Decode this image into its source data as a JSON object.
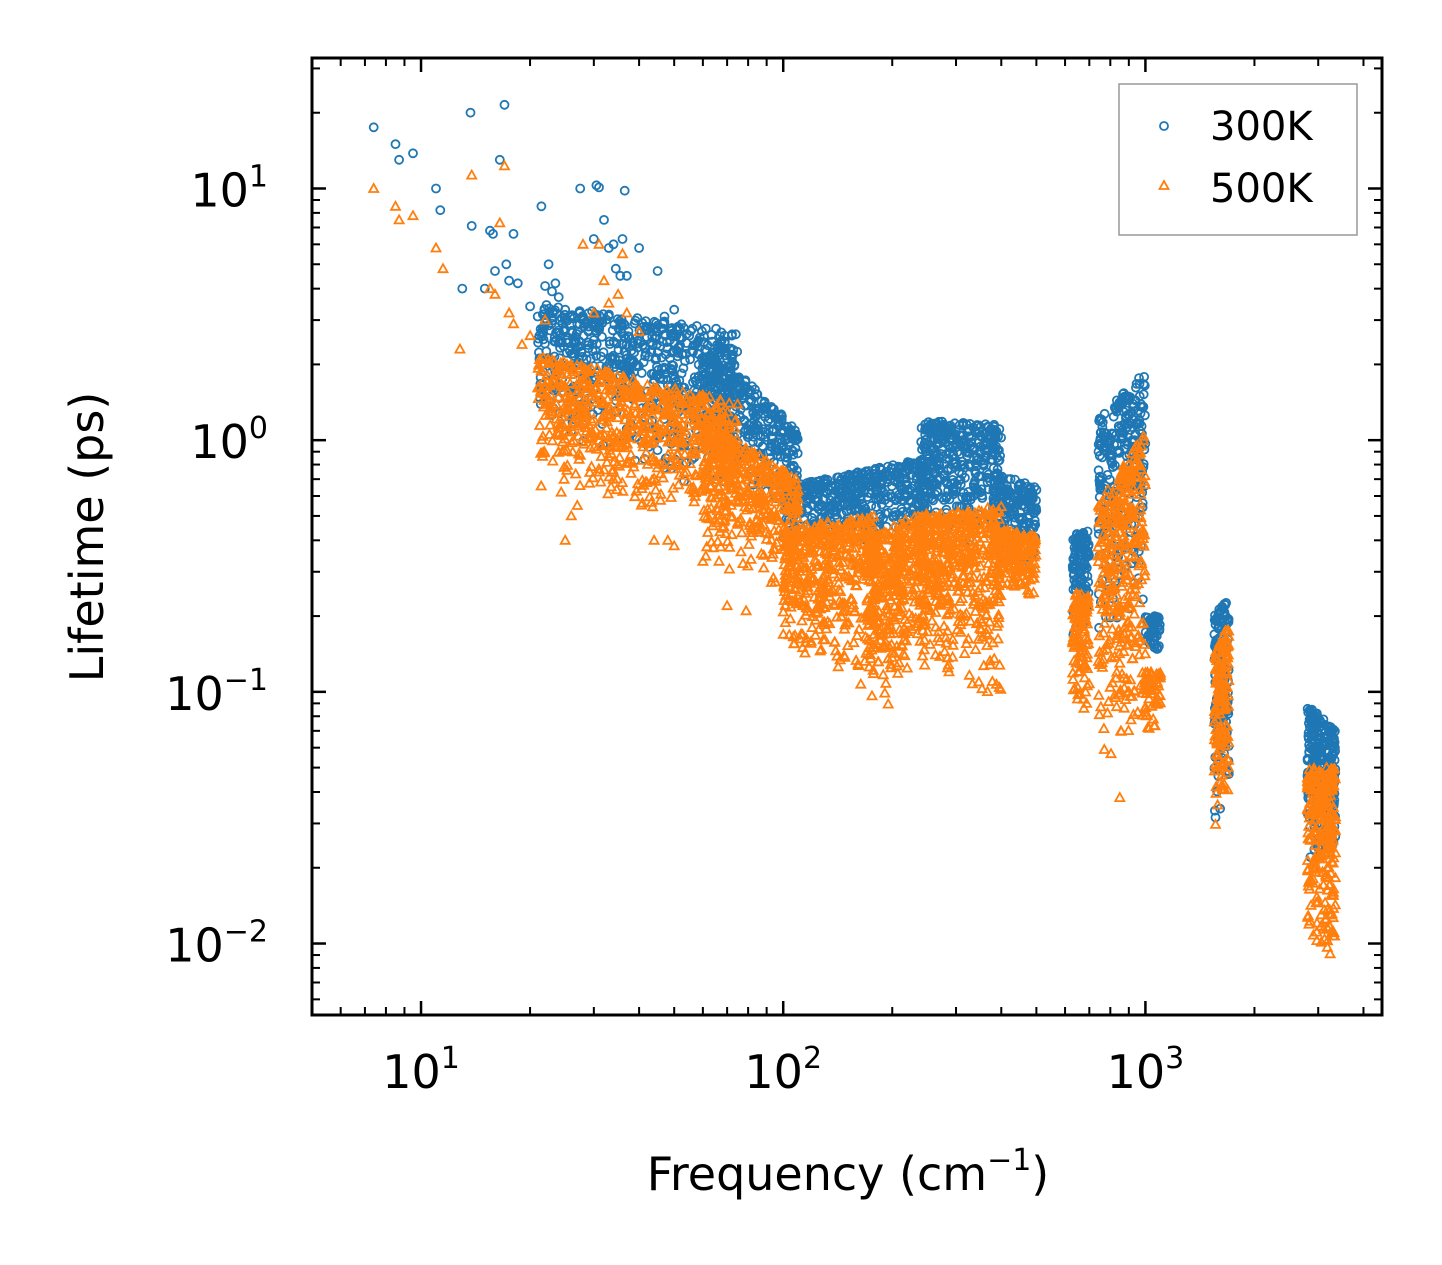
{
  "chart_data": {
    "type": "scatter",
    "xscale": "log",
    "yscale": "log",
    "xlim": [
      5,
      4500
    ],
    "ylim": [
      0.0052,
      33
    ],
    "xlabel": {
      "main": "Frequency (cm",
      "sup": "−1",
      "tail": ")"
    },
    "ylabel": "Lifetime (ps)",
    "x_ticks": [
      {
        "value": 10,
        "base": "10",
        "exp": "1"
      },
      {
        "value": 100,
        "base": "10",
        "exp": "2"
      },
      {
        "value": 1000,
        "base": "10",
        "exp": "3"
      }
    ],
    "y_ticks": [
      {
        "value": 10,
        "base": "10",
        "exp": "1"
      },
      {
        "value": 1,
        "base": "10",
        "exp": "0"
      },
      {
        "value": 0.1,
        "base": "10",
        "exp": "−1"
      },
      {
        "value": 0.01,
        "base": "10",
        "exp": "−2"
      }
    ],
    "legend": {
      "position": "top-right"
    },
    "series": [
      {
        "name": "300K",
        "color": "#1f77b4",
        "marker": "circle",
        "points": [
          [
            7.4,
            17.5
          ],
          [
            8.5,
            15
          ],
          [
            8.7,
            13
          ],
          [
            9.5,
            13.8
          ],
          [
            11,
            10
          ],
          [
            11.3,
            8.2
          ],
          [
            13,
            4
          ],
          [
            13.7,
            20
          ],
          [
            13.8,
            7.1
          ],
          [
            15,
            4
          ],
          [
            15.5,
            6.8
          ],
          [
            15.8,
            6.6
          ],
          [
            16,
            4.7
          ],
          [
            16.5,
            13
          ],
          [
            17,
            21.5
          ],
          [
            17.2,
            5
          ],
          [
            17.5,
            4.3
          ],
          [
            18,
            6.6
          ],
          [
            18.5,
            4.2
          ],
          [
            20,
            3.4
          ],
          [
            21,
            3.1
          ],
          [
            21.5,
            8.5
          ],
          [
            22,
            4.1
          ],
          [
            22.5,
            5
          ],
          [
            23,
            3.9
          ],
          [
            23.5,
            4.2
          ],
          [
            24,
            3.7
          ],
          [
            25,
            3.3
          ],
          [
            26,
            2.2
          ],
          [
            26.5,
            2.5
          ],
          [
            27,
            2.9
          ],
          [
            27.5,
            10
          ],
          [
            28,
            3.1
          ],
          [
            29,
            2.7
          ],
          [
            30,
            6.3
          ],
          [
            30.5,
            10.3
          ],
          [
            31,
            10.1
          ],
          [
            32,
            7.5
          ],
          [
            33,
            5.8
          ],
          [
            34,
            6
          ],
          [
            34.5,
            4.8
          ],
          [
            35.5,
            4.5
          ],
          [
            36,
            6.3
          ],
          [
            36.5,
            9.8
          ],
          [
            37,
            4.5
          ],
          [
            40,
            5.8
          ],
          [
            45,
            4.7
          ],
          [
            47,
            3.1
          ],
          [
            50,
            3.3
          ]
        ],
        "bands": [
          {
            "x": [
              21,
              75
            ],
            "ylo": [
              1.1,
              0.55
            ],
            "yhi": [
              3.5,
              2.7
            ],
            "n": 700
          },
          {
            "x": [
              60,
              110
            ],
            "ylo": [
              0.9,
              0.45
            ],
            "yhi": [
              2.5,
              1.1
            ],
            "n": 350
          },
          {
            "x": [
              100,
              250
            ],
            "ylo": [
              0.35,
              0.4
            ],
            "yhi": [
              0.65,
              0.85
            ],
            "n": 500
          },
          {
            "x": [
              240,
              400
            ],
            "ylo": [
              0.4,
              0.35
            ],
            "yhi": [
              1.2,
              1.15
            ],
            "n": 400
          },
          {
            "x": [
              380,
              500
            ],
            "ylo": [
              0.3,
              0.3
            ],
            "yhi": [
              0.75,
              0.65
            ],
            "n": 200
          },
          {
            "x": [
              630,
              700
            ],
            "ylo": [
              0.16,
              0.16
            ],
            "yhi": [
              0.42,
              0.45
            ],
            "n": 120
          },
          {
            "x": [
              740,
              1000
            ],
            "ylo": [
              0.16,
              0.2
            ],
            "yhi": [
              1.2,
              1.9
            ],
            "n": 300
          },
          {
            "x": [
              1000,
              1100
            ],
            "ylo": [
              0.14,
              0.14
            ],
            "yhi": [
              0.2,
              0.2
            ],
            "n": 60
          },
          {
            "x": [
              1550,
              1700
            ],
            "ylo": [
              0.03,
              0.03
            ],
            "yhi": [
              0.2,
              0.24
            ],
            "n": 140
          },
          {
            "x": [
              2800,
              3350
            ],
            "ylo": [
              0.02,
              0.02
            ],
            "yhi": [
              0.09,
              0.07
            ],
            "n": 260
          }
        ]
      },
      {
        "name": "500K",
        "color": "#ff7f0e",
        "marker": "triangle",
        "points": [
          [
            7.4,
            10
          ],
          [
            8.5,
            8.5
          ],
          [
            8.7,
            7.5
          ],
          [
            9.5,
            7.8
          ],
          [
            11,
            5.8
          ],
          [
            11.5,
            4.8
          ],
          [
            12.8,
            2.3
          ],
          [
            13.8,
            11.3
          ],
          [
            15.5,
            4
          ],
          [
            16,
            3.8
          ],
          [
            16.5,
            7.3
          ],
          [
            17,
            12.3
          ],
          [
            17.5,
            3.2
          ],
          [
            18,
            2.9
          ],
          [
            19,
            2.4
          ],
          [
            20,
            2.6
          ],
          [
            22,
            3
          ],
          [
            24,
            1.7
          ],
          [
            25,
            0.4
          ],
          [
            26,
            0.5
          ],
          [
            27,
            0.55
          ],
          [
            28,
            6
          ],
          [
            30,
            3.2
          ],
          [
            31,
            6
          ],
          [
            32,
            4.3
          ],
          [
            33,
            3.5
          ],
          [
            35,
            3.8
          ],
          [
            36,
            5.5
          ],
          [
            37,
            3.2
          ],
          [
            40,
            2.7
          ],
          [
            44,
            0.4
          ],
          [
            48,
            0.4
          ],
          [
            50,
            0.38
          ],
          [
            60,
            0.33
          ],
          [
            70,
            0.22
          ],
          [
            79,
            0.21
          ],
          [
            850,
            0.038
          ]
        ],
        "bands": [
          {
            "x": [
              21,
              75
            ],
            "ylo": [
              0.55,
              0.45
            ],
            "yhi": [
              2.2,
              1.4
            ],
            "n": 700
          },
          {
            "x": [
              60,
              110
            ],
            "ylo": [
              0.3,
              0.24
            ],
            "yhi": [
              1.2,
              0.7
            ],
            "n": 400
          },
          {
            "x": [
              100,
              180
            ],
            "ylo": [
              0.14,
              0.1
            ],
            "yhi": [
              0.45,
              0.5
            ],
            "n": 450
          },
          {
            "x": [
              170,
              250
            ],
            "ylo": [
              0.07,
              0.12
            ],
            "yhi": [
              0.4,
              0.55
            ],
            "n": 400
          },
          {
            "x": [
              240,
              400
            ],
            "ylo": [
              0.13,
              0.09
            ],
            "yhi": [
              0.5,
              0.55
            ],
            "n": 450
          },
          {
            "x": [
              380,
              500
            ],
            "ylo": [
              0.22,
              0.24
            ],
            "yhi": [
              0.45,
              0.42
            ],
            "n": 180
          },
          {
            "x": [
              630,
              700
            ],
            "ylo": [
              0.09,
              0.07
            ],
            "yhi": [
              0.25,
              0.25
            ],
            "n": 120
          },
          {
            "x": [
              740,
              1000
            ],
            "ylo": [
              0.05,
              0.05
            ],
            "yhi": [
              0.55,
              1.1
            ],
            "n": 350
          },
          {
            "x": [
              1000,
              1100
            ],
            "ylo": [
              0.07,
              0.07
            ],
            "yhi": [
              0.12,
              0.12
            ],
            "n": 60
          },
          {
            "x": [
              1550,
              1700
            ],
            "ylo": [
              0.026,
              0.026
            ],
            "yhi": [
              0.14,
              0.19
            ],
            "n": 150
          },
          {
            "x": [
              2800,
              3350
            ],
            "ylo": [
              0.009,
              0.008
            ],
            "yhi": [
              0.05,
              0.05
            ],
            "n": 280
          }
        ]
      }
    ]
  }
}
